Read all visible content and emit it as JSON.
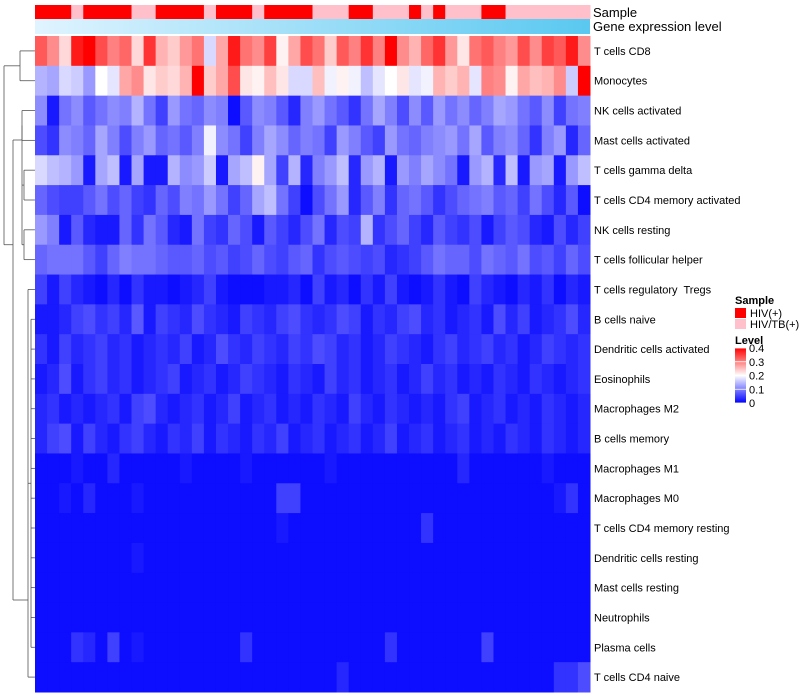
{
  "chart_data": {
    "type": "heatmap",
    "title": "",
    "row_labels": [
      "T cells CD8",
      "Monocytes",
      "NK cells activated",
      "Mast cells activated",
      "T cells gamma delta",
      "T cells CD4 memory activated",
      "NK cells resting",
      "T cells follicular helper",
      "T cells regulatory  Tregs",
      "B cells naive",
      "Dendritic cells activated",
      "Eosinophils",
      "Macrophages M2",
      "B cells memory",
      "Macrophages M1",
      "Macrophages M0",
      "T cells CD4 memory resting",
      "Dendritic cells resting",
      "Mast cells resting",
      "Neutrophils",
      "Plasma cells",
      "T cells CD4 naive"
    ],
    "n_samples": 46,
    "annotations": {
      "sample_label": "Sample",
      "level_label": "Gene expression level",
      "sample_groups": [
        "HIV(+)",
        "HIV(+)",
        "HIV(+)",
        "HIV/TB(+)",
        "HIV(+)",
        "HIV(+)",
        "HIV(+)",
        "HIV(+)",
        "HIV/TB(+)",
        "HIV/TB(+)",
        "HIV(+)",
        "HIV(+)",
        "HIV(+)",
        "HIV(+)",
        "HIV/TB(+)",
        "HIV(+)",
        "HIV(+)",
        "HIV(+)",
        "HIV/TB(+)",
        "HIV(+)",
        "HIV(+)",
        "HIV(+)",
        "HIV(+)",
        "HIV/TB(+)",
        "HIV/TB(+)",
        "HIV/TB(+)",
        "HIV(+)",
        "HIV(+)",
        "HIV/TB(+)",
        "HIV/TB(+)",
        "HIV/TB(+)",
        "HIV(+)",
        "HIV/TB(+)",
        "HIV(+)",
        "HIV/TB(+)",
        "HIV/TB(+)",
        "HIV/TB(+)",
        "HIV(+)",
        "HIV(+)",
        "HIV/TB(+)",
        "HIV/TB(+)",
        "HIV/TB(+)",
        "HIV/TB(+)",
        "HIV/TB(+)",
        "HIV/TB(+)",
        "HIV/TB(+)"
      ]
    },
    "values": [
      [
        0.33,
        0.29,
        0.23,
        0.38,
        0.4,
        0.34,
        0.3,
        0.32,
        0.23,
        0.36,
        0.26,
        0.24,
        0.28,
        0.31,
        0.17,
        0.27,
        0.38,
        0.31,
        0.29,
        0.35,
        0.21,
        0.27,
        0.34,
        0.31,
        0.24,
        0.33,
        0.3,
        0.36,
        0.3,
        0.4,
        0.29,
        0.26,
        0.32,
        0.36,
        0.28,
        0.22,
        0.31,
        0.33,
        0.3,
        0.28,
        0.34,
        0.29,
        0.35,
        0.33,
        0.38,
        0.29
      ],
      [
        0.14,
        0.13,
        0.17,
        0.16,
        0.12,
        0.2,
        0.18,
        0.27,
        0.29,
        0.22,
        0.24,
        0.23,
        0.26,
        0.4,
        0.24,
        0.27,
        0.34,
        0.22,
        0.21,
        0.25,
        0.22,
        0.17,
        0.17,
        0.25,
        0.19,
        0.21,
        0.19,
        0.15,
        0.18,
        0.2,
        0.22,
        0.18,
        0.19,
        0.26,
        0.24,
        0.26,
        0.18,
        0.3,
        0.29,
        0.21,
        0.27,
        0.25,
        0.26,
        0.29,
        0.16,
        0.4
      ],
      [
        0.11,
        0.02,
        0.09,
        0.11,
        0.07,
        0.09,
        0.11,
        0.1,
        0.14,
        0.09,
        0.05,
        0.12,
        0.09,
        0.08,
        0.11,
        0.1,
        0.01,
        0.07,
        0.11,
        0.1,
        0.07,
        0.03,
        0.1,
        0.12,
        0.09,
        0.07,
        0.04,
        0.09,
        0.13,
        0.1,
        0.06,
        0.11,
        0.07,
        0.12,
        0.09,
        0.11,
        0.08,
        0.1,
        0.13,
        0.12,
        0.09,
        0.07,
        0.11,
        0.05,
        0.09,
        0.1
      ],
      [
        0.06,
        0.04,
        0.11,
        0.1,
        0.08,
        0.13,
        0.1,
        0.06,
        0.1,
        0.12,
        0.08,
        0.09,
        0.07,
        0.1,
        0.19,
        0.11,
        0.09,
        0.05,
        0.1,
        0.13,
        0.11,
        0.08,
        0.1,
        0.09,
        0.05,
        0.12,
        0.1,
        0.07,
        0.05,
        0.12,
        0.09,
        0.08,
        0.1,
        0.11,
        0.12,
        0.09,
        0.13,
        0.07,
        0.1,
        0.11,
        0.08,
        0.04,
        0.1,
        0.12,
        0.03,
        0.08
      ],
      [
        0.17,
        0.15,
        0.14,
        0.12,
        0.02,
        0.13,
        0.15,
        0.02,
        0.13,
        0.02,
        0.02,
        0.14,
        0.11,
        0.12,
        0.16,
        0.02,
        0.13,
        0.15,
        0.21,
        0.13,
        0.05,
        0.14,
        0.03,
        0.1,
        0.12,
        0.15,
        0.03,
        0.12,
        0.14,
        0.02,
        0.12,
        0.1,
        0.13,
        0.11,
        0.09,
        0.02,
        0.12,
        0.14,
        0.03,
        0.15,
        0.02,
        0.12,
        0.13,
        0.02,
        0.12,
        0.15
      ],
      [
        0.08,
        0.06,
        0.05,
        0.05,
        0.07,
        0.09,
        0.06,
        0.08,
        0.05,
        0.04,
        0.08,
        0.06,
        0.1,
        0.09,
        0.12,
        0.09,
        0.05,
        0.08,
        0.13,
        0.15,
        0.09,
        0.05,
        0.01,
        0.06,
        0.09,
        0.12,
        0.03,
        0.07,
        0.1,
        0.04,
        0.08,
        0.09,
        0.07,
        0.04,
        0.06,
        0.08,
        0.09,
        0.1,
        0.07,
        0.08,
        0.05,
        0.09,
        0.06,
        0.03,
        0.07,
        0.01
      ],
      [
        0.12,
        0.1,
        0.02,
        0.07,
        0.03,
        0.02,
        0.02,
        0.08,
        0.04,
        0.09,
        0.07,
        0.03,
        0.02,
        0.09,
        0.05,
        0.04,
        0.08,
        0.06,
        0.02,
        0.07,
        0.05,
        0.03,
        0.06,
        0.09,
        0.03,
        0.06,
        0.05,
        0.14,
        0.04,
        0.06,
        0.08,
        0.05,
        0.03,
        0.07,
        0.05,
        0.04,
        0.06,
        0.02,
        0.05,
        0.07,
        0.06,
        0.03,
        0.02,
        0.06,
        0.03,
        0.05
      ],
      [
        0.08,
        0.09,
        0.09,
        0.09,
        0.07,
        0.05,
        0.08,
        0.1,
        0.09,
        0.09,
        0.08,
        0.07,
        0.07,
        0.08,
        0.06,
        0.07,
        0.05,
        0.06,
        0.08,
        0.06,
        0.05,
        0.07,
        0.08,
        0.04,
        0.06,
        0.07,
        0.06,
        0.05,
        0.06,
        0.03,
        0.04,
        0.05,
        0.07,
        0.09,
        0.08,
        0.08,
        0.06,
        0.09,
        0.08,
        0.07,
        0.09,
        0.06,
        0.07,
        0.05,
        0.08,
        0.06
      ],
      [
        0.05,
        0.02,
        0.05,
        0.03,
        0.02,
        0.01,
        0.03,
        0.01,
        0.04,
        0.02,
        0.02,
        0.01,
        0.02,
        0.03,
        0.05,
        0.02,
        0.01,
        0.01,
        0.01,
        0.02,
        0.02,
        0.03,
        0.01,
        0.05,
        0.02,
        0.03,
        0.01,
        0.04,
        0.02,
        0.05,
        0.02,
        0.01,
        0.02,
        0.04,
        0.02,
        0.01,
        0.05,
        0.03,
        0.02,
        0.01,
        0.03,
        0.02,
        0.04,
        0.01,
        0.03,
        0.02
      ],
      [
        0.02,
        0.02,
        0.03,
        0.05,
        0.06,
        0.04,
        0.05,
        0.03,
        0.07,
        0.02,
        0.05,
        0.04,
        0.03,
        0.06,
        0.04,
        0.03,
        0.02,
        0.05,
        0.04,
        0.03,
        0.05,
        0.06,
        0.04,
        0.03,
        0.04,
        0.06,
        0.05,
        0.02,
        0.04,
        0.03,
        0.05,
        0.06,
        0.03,
        0.04,
        0.02,
        0.03,
        0.04,
        0.02,
        0.06,
        0.03,
        0.05,
        0.02,
        0.03,
        0.04,
        0.06,
        0.03
      ],
      [
        0.04,
        0.02,
        0.05,
        0.03,
        0.04,
        0.05,
        0.03,
        0.04,
        0.02,
        0.03,
        0.04,
        0.03,
        0.05,
        0.02,
        0.03,
        0.06,
        0.04,
        0.03,
        0.05,
        0.04,
        0.03,
        0.05,
        0.04,
        0.06,
        0.05,
        0.03,
        0.04,
        0.02,
        0.03,
        0.05,
        0.04,
        0.03,
        0.02,
        0.04,
        0.05,
        0.03,
        0.04,
        0.05,
        0.03,
        0.04,
        0.02,
        0.03,
        0.05,
        0.04,
        0.03,
        0.04
      ],
      [
        0.02,
        0.03,
        0.06,
        0.02,
        0.04,
        0.05,
        0.03,
        0.04,
        0.02,
        0.03,
        0.04,
        0.05,
        0.02,
        0.03,
        0.04,
        0.02,
        0.03,
        0.05,
        0.04,
        0.03,
        0.02,
        0.04,
        0.03,
        0.02,
        0.05,
        0.03,
        0.04,
        0.02,
        0.03,
        0.04,
        0.02,
        0.03,
        0.05,
        0.03,
        0.04,
        0.02,
        0.03,
        0.02,
        0.04,
        0.03,
        0.02,
        0.04,
        0.03,
        0.02,
        0.03,
        0.04
      ],
      [
        0.03,
        0.04,
        0.02,
        0.03,
        0.02,
        0.03,
        0.04,
        0.02,
        0.05,
        0.06,
        0.03,
        0.02,
        0.03,
        0.04,
        0.02,
        0.03,
        0.05,
        0.02,
        0.03,
        0.04,
        0.02,
        0.03,
        0.02,
        0.04,
        0.03,
        0.02,
        0.05,
        0.03,
        0.02,
        0.04,
        0.03,
        0.02,
        0.03,
        0.02,
        0.04,
        0.05,
        0.02,
        0.03,
        0.04,
        0.02,
        0.03,
        0.02,
        0.04,
        0.03,
        0.02,
        0.03
      ],
      [
        0.03,
        0.05,
        0.06,
        0.02,
        0.05,
        0.03,
        0.02,
        0.04,
        0.05,
        0.03,
        0.02,
        0.04,
        0.03,
        0.05,
        0.02,
        0.04,
        0.03,
        0.02,
        0.04,
        0.03,
        0.05,
        0.02,
        0.03,
        0.04,
        0.02,
        0.03,
        0.04,
        0.02,
        0.03,
        0.05,
        0.02,
        0.03,
        0.04,
        0.02,
        0.03,
        0.04,
        0.02,
        0.03,
        0.02,
        0.04,
        0.03,
        0.02,
        0.04,
        0.03,
        0.02,
        0.03
      ],
      [
        0.01,
        0.01,
        0.01,
        0.02,
        0.01,
        0.01,
        0.03,
        0.01,
        0.01,
        0.01,
        0.01,
        0.01,
        0.02,
        0.01,
        0.01,
        0.01,
        0.01,
        0.02,
        0.01,
        0.01,
        0.01,
        0.01,
        0.01,
        0.01,
        0.02,
        0.01,
        0.01,
        0.01,
        0.01,
        0.01,
        0.01,
        0.01,
        0.01,
        0.01,
        0.01,
        0.03,
        0.01,
        0.01,
        0.01,
        0.01,
        0.01,
        0.01,
        0.02,
        0.01,
        0.01,
        0.01
      ],
      [
        0.01,
        0.01,
        0.02,
        0.01,
        0.03,
        0.01,
        0.01,
        0.01,
        0.02,
        0.01,
        0.01,
        0.01,
        0.01,
        0.01,
        0.01,
        0.01,
        0.01,
        0.01,
        0.01,
        0.01,
        0.05,
        0.05,
        0.01,
        0.01,
        0.01,
        0.01,
        0.01,
        0.01,
        0.01,
        0.01,
        0.01,
        0.01,
        0.01,
        0.01,
        0.01,
        0.01,
        0.01,
        0.01,
        0.01,
        0.01,
        0.01,
        0.01,
        0.01,
        0.02,
        0.04,
        0.01
      ],
      [
        0.01,
        0.01,
        0.01,
        0.01,
        0.01,
        0.01,
        0.01,
        0.01,
        0.01,
        0.01,
        0.01,
        0.01,
        0.01,
        0.01,
        0.01,
        0.01,
        0.01,
        0.01,
        0.01,
        0.01,
        0.02,
        0.01,
        0.01,
        0.01,
        0.01,
        0.01,
        0.01,
        0.01,
        0.01,
        0.01,
        0.01,
        0.01,
        0.04,
        0.01,
        0.01,
        0.01,
        0.01,
        0.01,
        0.01,
        0.01,
        0.01,
        0.01,
        0.01,
        0.01,
        0.01,
        0.01
      ],
      [
        0.01,
        0.01,
        0.01,
        0.01,
        0.01,
        0.01,
        0.01,
        0.01,
        0.02,
        0.01,
        0.01,
        0.01,
        0.01,
        0.01,
        0.01,
        0.01,
        0.01,
        0.01,
        0.01,
        0.01,
        0.01,
        0.01,
        0.01,
        0.01,
        0.01,
        0.01,
        0.01,
        0.01,
        0.01,
        0.01,
        0.01,
        0.01,
        0.01,
        0.01,
        0.01,
        0.01,
        0.01,
        0.01,
        0.01,
        0.01,
        0.01,
        0.01,
        0.01,
        0.01,
        0.01,
        0.01
      ],
      [
        0.01,
        0.01,
        0.01,
        0.01,
        0.01,
        0.01,
        0.01,
        0.01,
        0.01,
        0.01,
        0.01,
        0.01,
        0.01,
        0.01,
        0.01,
        0.01,
        0.01,
        0.01,
        0.01,
        0.01,
        0.01,
        0.01,
        0.01,
        0.01,
        0.01,
        0.01,
        0.01,
        0.01,
        0.01,
        0.01,
        0.01,
        0.01,
        0.01,
        0.01,
        0.01,
        0.01,
        0.01,
        0.01,
        0.01,
        0.01,
        0.01,
        0.01,
        0.01,
        0.01,
        0.01,
        0.01
      ],
      [
        0.01,
        0.01,
        0.01,
        0.01,
        0.01,
        0.01,
        0.01,
        0.01,
        0.01,
        0.01,
        0.01,
        0.01,
        0.01,
        0.01,
        0.01,
        0.01,
        0.01,
        0.01,
        0.01,
        0.01,
        0.01,
        0.01,
        0.01,
        0.01,
        0.01,
        0.01,
        0.01,
        0.01,
        0.01,
        0.01,
        0.01,
        0.01,
        0.01,
        0.01,
        0.01,
        0.01,
        0.01,
        0.01,
        0.01,
        0.01,
        0.01,
        0.01,
        0.01,
        0.01,
        0.01,
        0.01
      ],
      [
        0.01,
        0.01,
        0.01,
        0.04,
        0.03,
        0.01,
        0.05,
        0.01,
        0.02,
        0.01,
        0.01,
        0.01,
        0.01,
        0.01,
        0.01,
        0.01,
        0.01,
        0.04,
        0.01,
        0.01,
        0.01,
        0.01,
        0.01,
        0.01,
        0.01,
        0.01,
        0.01,
        0.01,
        0.01,
        0.04,
        0.01,
        0.01,
        0.01,
        0.01,
        0.01,
        0.01,
        0.01,
        0.05,
        0.01,
        0.01,
        0.01,
        0.01,
        0.01,
        0.01,
        0.01,
        0.01
      ],
      [
        0.01,
        0.01,
        0.01,
        0.01,
        0.01,
        0.01,
        0.01,
        0.01,
        0.01,
        0.01,
        0.01,
        0.01,
        0.01,
        0.01,
        0.01,
        0.01,
        0.01,
        0.01,
        0.01,
        0.01,
        0.01,
        0.01,
        0.01,
        0.01,
        0.01,
        0.03,
        0.01,
        0.01,
        0.01,
        0.01,
        0.01,
        0.01,
        0.01,
        0.01,
        0.01,
        0.01,
        0.01,
        0.01,
        0.01,
        0.01,
        0.01,
        0.01,
        0.01,
        0.04,
        0.04,
        0.06
      ]
    ],
    "legend": {
      "sample_title": "Sample",
      "sample_entries": [
        {
          "label": "HIV(+)",
          "color": "#ff0000"
        },
        {
          "label": "HIV/TB(+)",
          "color": "#ffc0cb"
        }
      ],
      "level_title": "Level",
      "level_ticks": [
        "0.4",
        "0.3",
        "0.2",
        "0.1",
        "0"
      ],
      "level_range": [
        0,
        0.4
      ],
      "placement": "right"
    },
    "colors": {
      "low": "#0000ff",
      "mid": "#ffffff",
      "high": "#ff0000",
      "level_bar_start": "#e0f4ff",
      "level_bar_end": "#5ac8f0"
    }
  }
}
